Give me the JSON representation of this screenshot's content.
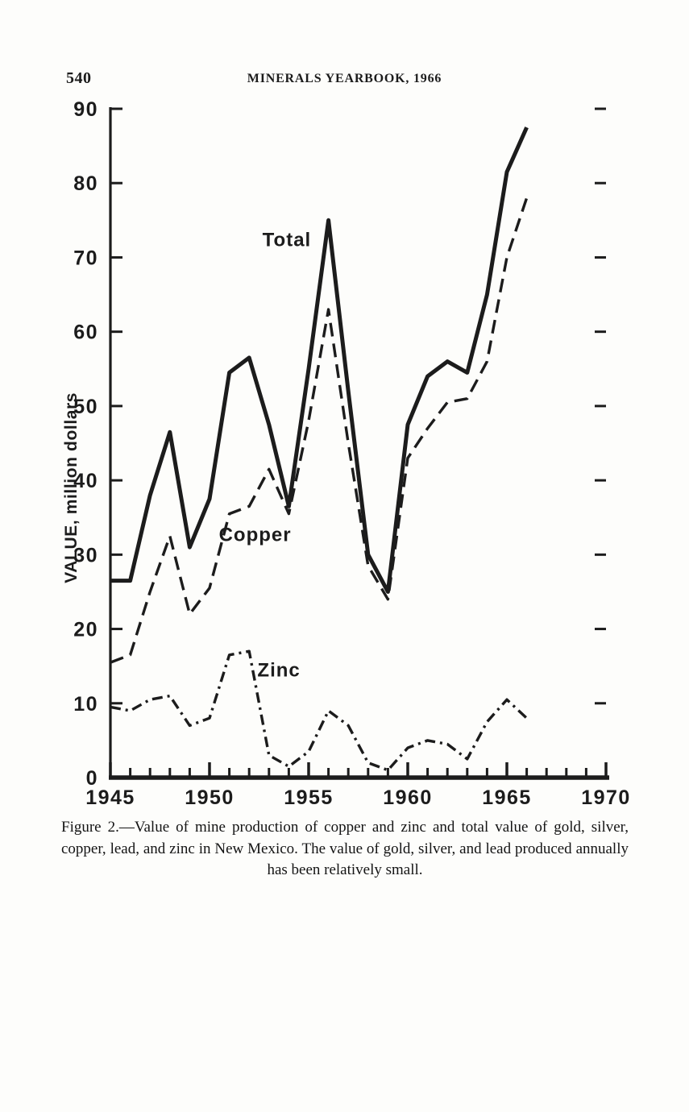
{
  "page": {
    "page_number": "540",
    "header_title": "MINERALS YEARBOOK, 1966",
    "caption": "Figure 2.—Value of mine production of copper and zinc and total value of gold, silver, copper, lead, and zinc in New Mexico. The value of gold, silver, and lead produced annually has been relatively small."
  },
  "chart_data": {
    "type": "line",
    "title": "",
    "xlabel": "",
    "ylabel": "VALUE, million dollars",
    "xlim": [
      1945,
      1970
    ],
    "ylim": [
      0,
      90
    ],
    "grid": false,
    "legend_position": "inline-labels",
    "x_ticks_major": [
      1945,
      1950,
      1955,
      1960,
      1965,
      1970
    ],
    "y_ticks": [
      0,
      10,
      20,
      30,
      40,
      50,
      60,
      70,
      80,
      90
    ],
    "x": [
      1945,
      1946,
      1947,
      1948,
      1949,
      1950,
      1951,
      1952,
      1953,
      1954,
      1955,
      1956,
      1957,
      1958,
      1959,
      1960,
      1961,
      1962,
      1963,
      1964,
      1965,
      1966
    ],
    "series": [
      {
        "name": "Total",
        "style": "solid",
        "line_width": 5,
        "values": [
          26.5,
          26.5,
          38,
          46.5,
          31,
          37.5,
          54.5,
          56.5,
          47.5,
          36.5,
          55,
          75,
          52,
          30,
          25,
          47.5,
          54,
          56,
          54.5,
          65,
          81.5,
          87.5
        ]
      },
      {
        "name": "Copper",
        "style": "dashed",
        "line_width": 3.4,
        "values": [
          15.5,
          16.5,
          25,
          32.5,
          22,
          25.5,
          35.5,
          36.5,
          41.5,
          35.5,
          48,
          63,
          45,
          28.5,
          24,
          43,
          47,
          50.5,
          51,
          56,
          70,
          78
        ]
      },
      {
        "name": "Zinc",
        "style": "dashdot",
        "line_width": 3.4,
        "values": [
          9.5,
          9,
          10.5,
          11,
          7,
          8,
          16.5,
          17,
          3,
          1.5,
          3.5,
          9,
          7,
          2,
          1,
          4,
          5,
          4.5,
          2.5,
          7.5,
          10.5,
          8
        ]
      }
    ],
    "annotations": [
      {
        "text": "Total",
        "x": 1953.9,
        "y": 71.5
      },
      {
        "text": "Copper",
        "x": 1952.3,
        "y": 31.8
      },
      {
        "text": "Zinc",
        "x": 1953.5,
        "y": 13.6
      }
    ],
    "ink_color": "#1c1c1c",
    "paper_color": "#fdfdfb"
  }
}
